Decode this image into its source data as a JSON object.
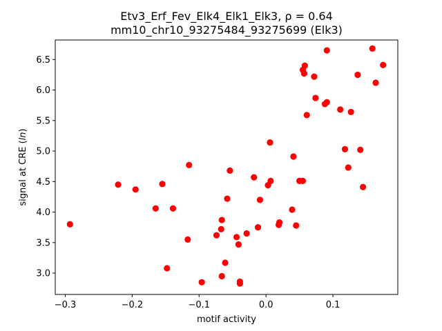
{
  "chart_data": {
    "type": "scatter",
    "title_line1": "Etv3_Erf_Fev_Elk4_Elk1_Elk3, ρ = 0.64",
    "title_line2": "mm10_chr10_93275484_93275699 (Elk3)",
    "xlabel": "motif activity",
    "ylabel": "signal at CRE (ln)",
    "xlim": [
      -0.315,
      0.197
    ],
    "ylim": [
      2.65,
      6.82
    ],
    "xticks": [
      -0.3,
      -0.2,
      -0.1,
      0.0,
      0.1
    ],
    "xtick_labels": [
      "−0.3",
      "−0.2",
      "−0.1",
      "0.0",
      "0.1"
    ],
    "yticks": [
      3.0,
      3.5,
      4.0,
      4.5,
      5.0,
      5.5,
      6.0,
      6.5
    ],
    "ytick_labels": [
      "3.0",
      "3.5",
      "4.0",
      "4.5",
      "5.0",
      "5.5",
      "6.0",
      "6.5"
    ],
    "grid": false,
    "marker_color": "#ff0000",
    "points": [
      {
        "x": -0.293,
        "y": 3.8
      },
      {
        "x": -0.221,
        "y": 4.45
      },
      {
        "x": -0.195,
        "y": 4.37
      },
      {
        "x": -0.165,
        "y": 4.06
      },
      {
        "x": -0.155,
        "y": 4.46
      },
      {
        "x": -0.148,
        "y": 3.08
      },
      {
        "x": -0.139,
        "y": 4.06
      },
      {
        "x": -0.117,
        "y": 3.55
      },
      {
        "x": -0.115,
        "y": 4.77
      },
      {
        "x": -0.096,
        "y": 2.85
      },
      {
        "x": -0.074,
        "y": 3.62
      },
      {
        "x": -0.067,
        "y": 3.72
      },
      {
        "x": -0.066,
        "y": 3.87
      },
      {
        "x": -0.066,
        "y": 2.95
      },
      {
        "x": -0.061,
        "y": 3.17
      },
      {
        "x": -0.058,
        "y": 4.22
      },
      {
        "x": -0.054,
        "y": 4.68
      },
      {
        "x": -0.044,
        "y": 3.59
      },
      {
        "x": -0.041,
        "y": 3.47
      },
      {
        "x": -0.039,
        "y": 2.86
      },
      {
        "x": -0.039,
        "y": 2.83
      },
      {
        "x": -0.029,
        "y": 3.65
      },
      {
        "x": -0.018,
        "y": 4.57
      },
      {
        "x": -0.012,
        "y": 3.75
      },
      {
        "x": -0.009,
        "y": 4.2
      },
      {
        "x": 0.003,
        "y": 4.44
      },
      {
        "x": 0.006,
        "y": 5.14
      },
      {
        "x": 0.007,
        "y": 4.51
      },
      {
        "x": 0.019,
        "y": 3.79
      },
      {
        "x": 0.02,
        "y": 3.83
      },
      {
        "x": 0.039,
        "y": 4.04
      },
      {
        "x": 0.041,
        "y": 4.91
      },
      {
        "x": 0.045,
        "y": 3.78
      },
      {
        "x": 0.05,
        "y": 4.51
      },
      {
        "x": 0.055,
        "y": 4.51
      },
      {
        "x": 0.055,
        "y": 6.33
      },
      {
        "x": 0.057,
        "y": 6.27
      },
      {
        "x": 0.058,
        "y": 6.4
      },
      {
        "x": 0.061,
        "y": 5.59
      },
      {
        "x": 0.072,
        "y": 6.22
      },
      {
        "x": 0.074,
        "y": 5.87
      },
      {
        "x": 0.088,
        "y": 5.77
      },
      {
        "x": 0.091,
        "y": 5.8
      },
      {
        "x": 0.091,
        "y": 6.65
      },
      {
        "x": 0.111,
        "y": 5.68
      },
      {
        "x": 0.118,
        "y": 5.03
      },
      {
        "x": 0.123,
        "y": 4.73
      },
      {
        "x": 0.127,
        "y": 5.64
      },
      {
        "x": 0.137,
        "y": 6.25
      },
      {
        "x": 0.141,
        "y": 5.02
      },
      {
        "x": 0.145,
        "y": 4.41
      },
      {
        "x": 0.159,
        "y": 6.68
      },
      {
        "x": 0.164,
        "y": 6.12
      },
      {
        "x": 0.175,
        "y": 6.41
      }
    ]
  }
}
